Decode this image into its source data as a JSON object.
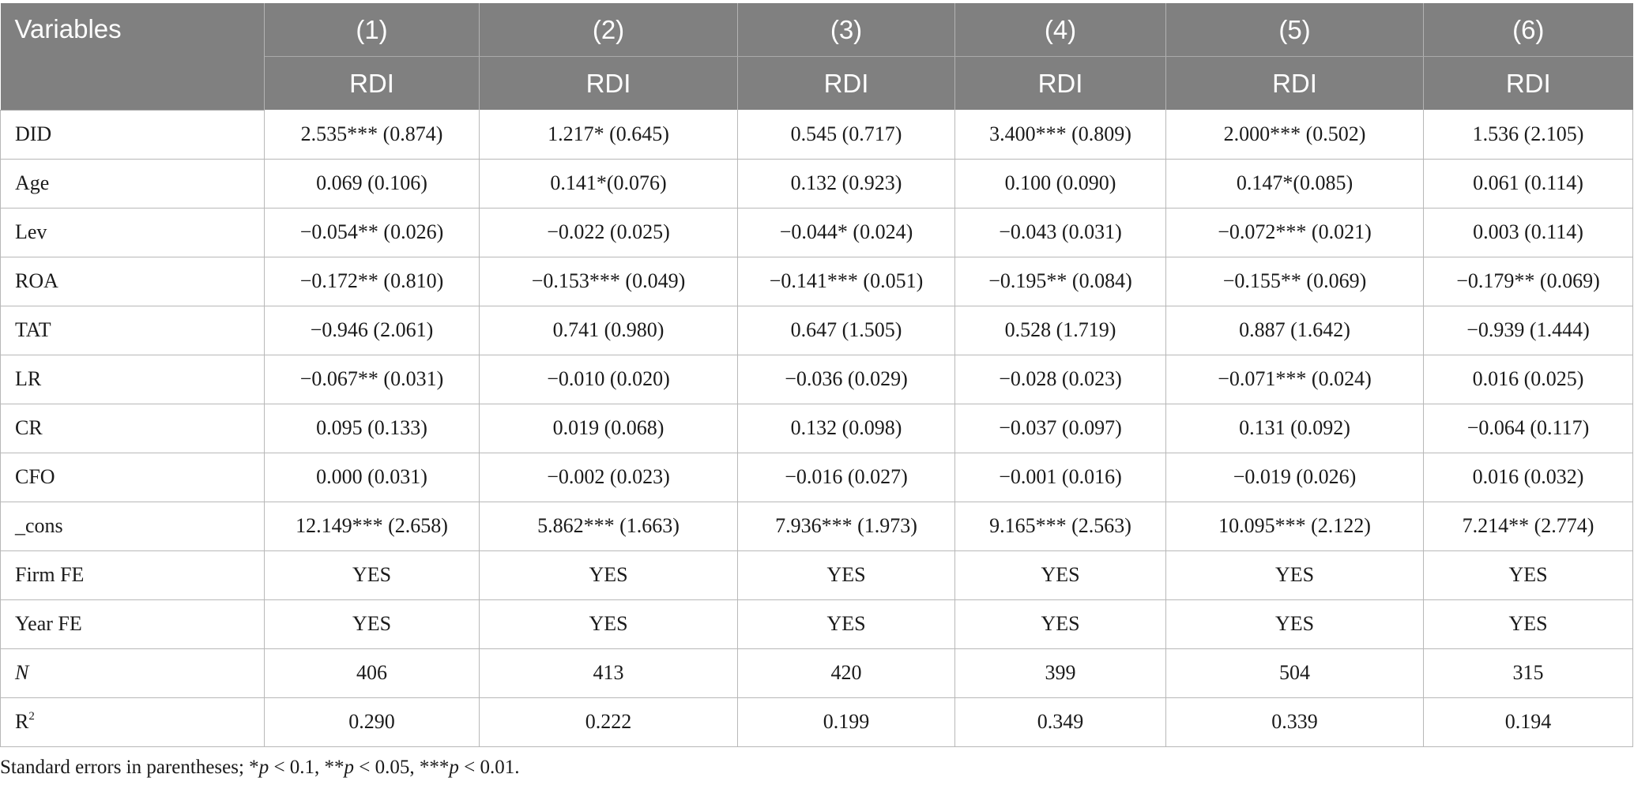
{
  "table": {
    "header_label": "Variables",
    "columns": [
      "(1)",
      "(2)",
      "(3)",
      "(4)",
      "(5)",
      "(6)"
    ],
    "dependent": [
      "RDI",
      "RDI",
      "RDI",
      "RDI",
      "RDI",
      "RDI"
    ],
    "rows": [
      {
        "label": "DID",
        "cells": [
          "2.535*** (0.874)",
          "1.217* (0.645)",
          "0.545 (0.717)",
          "3.400*** (0.809)",
          "2.000*** (0.502)",
          "1.536 (2.105)"
        ]
      },
      {
        "label": "Age",
        "cells": [
          "0.069 (0.106)",
          "0.141*(0.076)",
          "0.132 (0.923)",
          "0.100 (0.090)",
          "0.147*(0.085)",
          "0.061 (0.114)"
        ]
      },
      {
        "label": "Lev",
        "cells": [
          "−0.054** (0.026)",
          "−0.022 (0.025)",
          "−0.044* (0.024)",
          "−0.043 (0.031)",
          "−0.072*** (0.021)",
          "0.003 (0.114)"
        ]
      },
      {
        "label": "ROA",
        "cells": [
          "−0.172** (0.810)",
          "−0.153*** (0.049)",
          "−0.141*** (0.051)",
          "−0.195** (0.084)",
          "−0.155** (0.069)",
          "−0.179** (0.069)"
        ]
      },
      {
        "label": "TAT",
        "cells": [
          "−0.946 (2.061)",
          "0.741 (0.980)",
          "0.647 (1.505)",
          "0.528 (1.719)",
          "0.887 (1.642)",
          "−0.939 (1.444)"
        ]
      },
      {
        "label": "LR",
        "cells": [
          "−0.067** (0.031)",
          "−0.010 (0.020)",
          "−0.036 (0.029)",
          "−0.028 (0.023)",
          "−0.071*** (0.024)",
          "0.016 (0.025)"
        ]
      },
      {
        "label": "CR",
        "cells": [
          "0.095 (0.133)",
          "0.019 (0.068)",
          "0.132 (0.098)",
          "−0.037 (0.097)",
          "0.131 (0.092)",
          "−0.064 (0.117)"
        ]
      },
      {
        "label": "CFO",
        "cells": [
          "0.000 (0.031)",
          "−0.002 (0.023)",
          "−0.016 (0.027)",
          "−0.001 (0.016)",
          "−0.019 (0.026)",
          "0.016 (0.032)"
        ]
      },
      {
        "label": "_cons",
        "cells": [
          "12.149*** (2.658)",
          "5.862*** (1.663)",
          "7.936*** (1.973)",
          "9.165*** (2.563)",
          "10.095*** (2.122)",
          "7.214** (2.774)"
        ]
      },
      {
        "label": "Firm FE",
        "cells": [
          "YES",
          "YES",
          "YES",
          "YES",
          "YES",
          "YES"
        ]
      },
      {
        "label": "Year FE",
        "cells": [
          "YES",
          "YES",
          "YES",
          "YES",
          "YES",
          "YES"
        ]
      },
      {
        "label": "N",
        "cells": [
          "406",
          "413",
          "420",
          "399",
          "504",
          "315"
        ]
      },
      {
        "label": "R",
        "cells": [
          "0.290",
          "0.222",
          "0.199",
          "0.349",
          "0.339",
          "0.194"
        ]
      }
    ],
    "r2_superscript": "2"
  },
  "note": {
    "prefix": "Standard errors in parentheses; *",
    "p": "p",
    "t1": " < 0.1, **",
    "t2": " < 0.05, ***",
    "t3": " < 0.01."
  },
  "colors": {
    "header_bg": "#808080",
    "header_text": "#ffffff",
    "grid": "#b8b8b8"
  }
}
